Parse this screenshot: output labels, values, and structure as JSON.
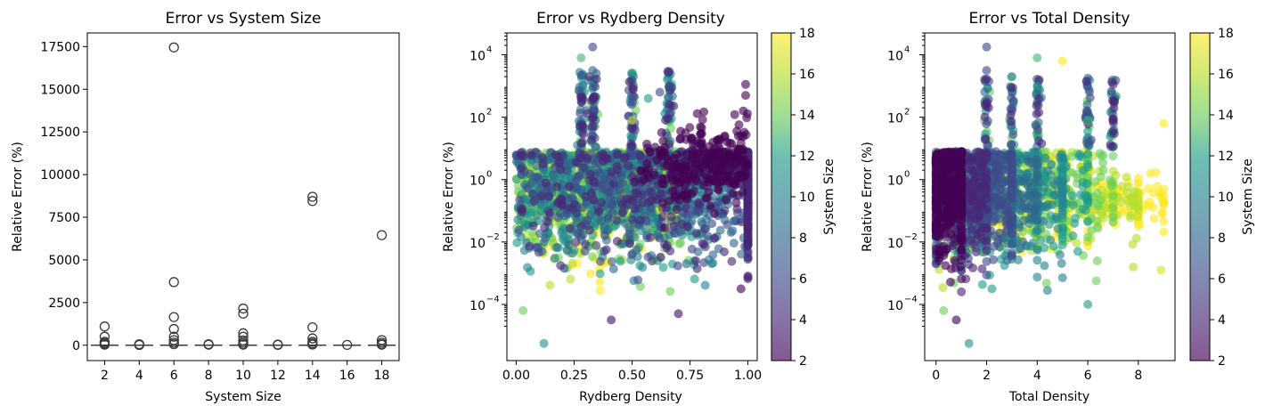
{
  "colormap": {
    "name": "viridis",
    "stops": [
      "#440154",
      "#482777",
      "#3f4a8a",
      "#31678e",
      "#26838f",
      "#1f9d8a",
      "#6cce5a",
      "#b6de2b",
      "#fee825"
    ]
  },
  "chart_data": [
    {
      "type": "box",
      "title": "Error vs System Size",
      "xlabel": "System Size",
      "ylabel": "Relative Error (%)",
      "categories": [
        "2",
        "4",
        "6",
        "8",
        "10",
        "12",
        "14",
        "16",
        "18"
      ],
      "yticks": [
        0,
        2500,
        5000,
        7500,
        10000,
        12500,
        15000,
        17500
      ],
      "ytick_labels": [
        "0",
        "2500",
        "5000",
        "7500",
        "10000",
        "12500",
        "15000",
        "17500"
      ],
      "ylim": [
        -900,
        18300
      ],
      "median": 0,
      "outliers": [
        [
          1100,
          500,
          200,
          120,
          60,
          30
        ],
        [
          60,
          30,
          15
        ],
        [
          17450,
          3700,
          1650,
          950,
          500,
          300,
          150,
          60
        ],
        [
          60,
          30
        ],
        [
          2150,
          1850,
          700,
          500,
          280,
          150,
          60,
          30
        ],
        [
          40,
          20
        ],
        [
          8700,
          8450,
          1050,
          400,
          200,
          100,
          40
        ],
        [
          20
        ],
        [
          6450,
          300,
          150,
          60,
          30
        ]
      ]
    },
    {
      "type": "scatter",
      "title": "Error vs Rydberg Density",
      "xlabel": "Rydberg Density",
      "ylabel": "Relative Error (%)",
      "xticks": [
        0.0,
        0.25,
        0.5,
        0.75,
        1.0
      ],
      "xtick_labels": [
        "0.00",
        "0.25",
        "0.50",
        "0.75",
        "1.00"
      ],
      "xlim": [
        -0.04,
        1.04
      ],
      "yscale": "log",
      "yticks_exp": [
        -4,
        -2,
        0,
        2,
        4
      ],
      "ylim_exp": [
        -5.8,
        4.7
      ],
      "colorbar_label": "System Size",
      "colorbar_range": [
        2,
        18
      ],
      "colorbar_ticks": [
        "2",
        "4",
        "6",
        "8",
        "10",
        "12",
        "14",
        "16",
        "18"
      ],
      "highlights": [
        {
          "x": 0.33,
          "log10y": 4.25,
          "size": 6
        },
        {
          "x": 0.28,
          "log10y": 3.9,
          "size": 13
        },
        {
          "x": 0.33,
          "log10y": 3.5,
          "size": 8
        },
        {
          "x": 0.66,
          "log10y": 3.0,
          "size": 7
        },
        {
          "x": 0.62,
          "log10y": 2.8,
          "size": 6
        },
        {
          "x": 0.57,
          "log10y": 2.6,
          "size": 12
        },
        {
          "x": 0.99,
          "log10y": 3.05,
          "size": 2
        },
        {
          "x": 0.99,
          "log10y": 2.7,
          "size": 2
        },
        {
          "x": 0.98,
          "log10y": 2.2,
          "size": 2
        },
        {
          "x": 0.5,
          "log10y": 1.9,
          "size": 16
        },
        {
          "x": 0.97,
          "log10y": -3.5,
          "size": 2
        },
        {
          "x": 0.7,
          "log10y": -4.3,
          "size": 3
        },
        {
          "x": 0.12,
          "log10y": -5.25,
          "size": 11
        },
        {
          "x": 0.41,
          "log10y": -4.5,
          "size": 3
        },
        {
          "x": 0.03,
          "log10y": -4.2,
          "size": 14
        }
      ]
    },
    {
      "type": "scatter",
      "title": "Error vs Total Density",
      "xlabel": "Total Density",
      "ylabel": "Relative Error (%)",
      "xticks": [
        0,
        2,
        4,
        6,
        8
      ],
      "xtick_labels": [
        "0",
        "2",
        "4",
        "6",
        "8"
      ],
      "xlim": [
        -0.45,
        9.45
      ],
      "yscale": "log",
      "yticks_exp": [
        -4,
        -2,
        0,
        2,
        4
      ],
      "ylim_exp": [
        -5.8,
        4.7
      ],
      "colorbar_label": "System Size",
      "colorbar_range": [
        2,
        18
      ],
      "colorbar_ticks": [
        "2",
        "4",
        "6",
        "8",
        "10",
        "12",
        "14",
        "16",
        "18"
      ],
      "highlights": [
        {
          "x": 2.0,
          "log10y": 4.25,
          "size": 6
        },
        {
          "x": 4.0,
          "log10y": 3.9,
          "size": 13
        },
        {
          "x": 5.0,
          "log10y": 3.8,
          "size": 18
        },
        {
          "x": 2.0,
          "log10y": 3.5,
          "size": 6
        },
        {
          "x": 3.0,
          "log10y": 3.3,
          "size": 10
        },
        {
          "x": 4.0,
          "log10y": 3.0,
          "size": 11
        },
        {
          "x": 6.0,
          "log10y": 1.9,
          "size": 13
        },
        {
          "x": 9.0,
          "log10y": 1.8,
          "size": 18
        },
        {
          "x": 7.8,
          "log10y": -2.8,
          "size": 16
        },
        {
          "x": 8.9,
          "log10y": -2.9,
          "size": 17
        },
        {
          "x": 1.3,
          "log10y": -5.25,
          "size": 11
        },
        {
          "x": 0.8,
          "log10y": -4.5,
          "size": 2
        },
        {
          "x": 0.3,
          "log10y": -4.2,
          "size": 14
        },
        {
          "x": 6.0,
          "log10y": -4.0,
          "size": 12
        }
      ]
    }
  ]
}
